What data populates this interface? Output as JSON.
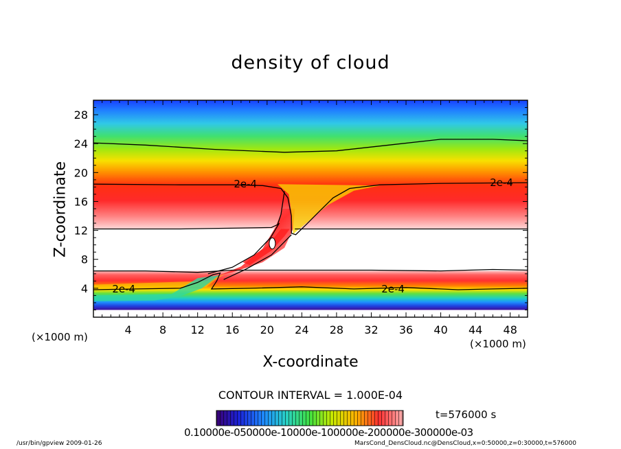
{
  "chart_data": {
    "type": "heatmap",
    "title": "density of cloud",
    "xlabel": "X-coordinate",
    "ylabel": "Z-coordinate",
    "x_unit_label": "(×1000 m)",
    "xlim": [
      0,
      50
    ],
    "ylim": [
      0,
      30
    ],
    "x_ticks": [
      4,
      8,
      12,
      16,
      20,
      24,
      28,
      32,
      36,
      40,
      44,
      48
    ],
    "y_ticks": [
      4,
      8,
      12,
      16,
      20,
      24,
      28
    ],
    "contour_interval_label": "CONTOUR INTERVAL = 1.000E-04",
    "contour_labels": [
      {
        "text": "2e-4",
        "x": 17.5,
        "y": 18.4
      },
      {
        "text": "2e-4",
        "x": 47.0,
        "y": 18.6
      },
      {
        "text": "2e-4",
        "x": 3.5,
        "y": 3.9
      },
      {
        "text": "2e-4",
        "x": 34.5,
        "y": 3.9
      }
    ],
    "colorbar": {
      "tick_label_text": "0.10000e-050000e-10000e-100000e-200000e-300000e-03",
      "colors": [
        "#3a0072",
        "#1a22d8",
        "#1e88ff",
        "#28d0c8",
        "#40e040",
        "#c8e800",
        "#ffb000",
        "#ff3030",
        "#ffb0b0"
      ]
    },
    "time_label": "t=576000  s",
    "colors": {
      "top": "#1a40ff",
      "upper_band_peak": "#ff1a1a",
      "clear_layer": "#ffffff",
      "lower_band_peak": "#ff4040",
      "surface": "#3a0090"
    }
  },
  "footer": {
    "left": "/usr/bin/gpview   2009-01-26",
    "right": "MarsCond_DensCloud.nc@DensCloud,x=0:50000,z=0:30000,t=576000"
  }
}
